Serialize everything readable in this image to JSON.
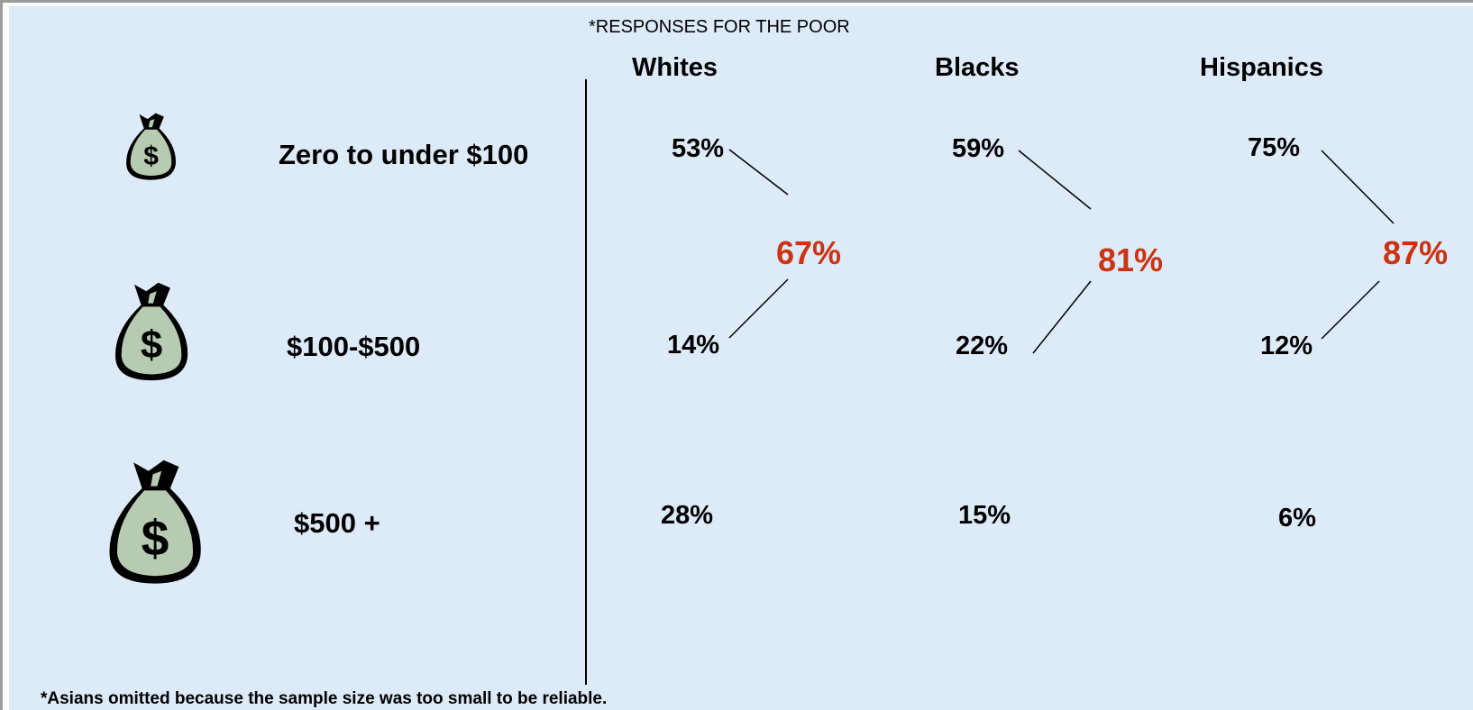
{
  "title": "*RESPONSES FOR THE  POOR",
  "footnote": "*Asians omitted  because the sample size was too small to be reliable.",
  "colors": {
    "background": "#ddeaf8",
    "text": "#000000",
    "combined": "#cc3311",
    "bag_fill": "#b6cbb1",
    "bag_outline": "#000000"
  },
  "icons": [
    "money-bag-icon",
    "money-bag-icon",
    "money-bag-icon"
  ],
  "chart_data": {
    "type": "table",
    "title": "*RESPONSES FOR THE  POOR",
    "columns": [
      "Whites",
      "Blacks",
      "Hispanics"
    ],
    "rows": [
      "Zero to under $100",
      "$100-$500",
      "$500 +"
    ],
    "values": [
      [
        "53%",
        "59%",
        "75%"
      ],
      [
        "14%",
        "22%",
        "12%"
      ],
      [
        "28%",
        "15%",
        "6%"
      ]
    ],
    "combined_first_two_rows": [
      "67%",
      "81%",
      "87%"
    ],
    "footnote": "*Asians omitted  because the sample size was too small to be reliable."
  }
}
